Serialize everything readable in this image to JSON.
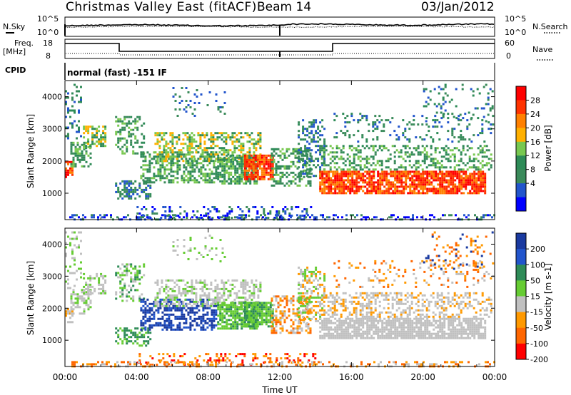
{
  "header": {
    "radar": "Christmas Valley East (fitACF)",
    "beam": "Beam 14",
    "date": "03/Jan/2012"
  },
  "noise_panel": {
    "left_label": "N.Sky",
    "right_label": "N.Search",
    "left_ticks": [
      "10^5",
      "10^0"
    ],
    "right_ticks": [
      "10^5",
      "10^0"
    ]
  },
  "freq_panel": {
    "left_label": "Freq.",
    "left_unit": "[MHz]",
    "right_label": "Nave",
    "left_ticks": [
      "18",
      "8"
    ],
    "right_ticks": [
      "60",
      "0"
    ]
  },
  "cpid": {
    "label": "CPID",
    "value": "normal (fast) -151 IF"
  },
  "chart_data": [
    {
      "type": "heatmap",
      "title": "",
      "quantity": "Power",
      "ylabel": "Slant Range [km]",
      "xlabel": "",
      "x_range": [
        "00:00",
        "24:00"
      ],
      "ylim": [
        180,
        4500
      ],
      "y_ticks": [
        1000,
        2000,
        3000,
        4000
      ],
      "colorbar": {
        "label": "Power [dB]",
        "ticks": [
          "4",
          "8",
          "12",
          "16",
          "20",
          "24",
          "28"
        ],
        "colors": [
          "#0000ff",
          "#2255cc",
          "#3a8a5a",
          "#2e8b57",
          "#78c850",
          "#ffb000",
          "#ff8000",
          "#ff3300",
          "#ff0000"
        ]
      }
    },
    {
      "type": "heatmap",
      "title": "",
      "quantity": "Velocity",
      "ylabel": "Slant Range [km]",
      "xlabel": "Time UT",
      "x_ticks": [
        "00:00",
        "04:00",
        "08:00",
        "12:00",
        "16:00",
        "20:00",
        "00:00"
      ],
      "ylim": [
        180,
        4500
      ],
      "y_ticks": [
        1000,
        2000,
        3000,
        4000
      ],
      "colorbar": {
        "label": "Velocity [m s-1]",
        "ticks": [
          "200",
          "100",
          "50",
          "15",
          "-15",
          "-50",
          "-100",
          "-200"
        ],
        "colors": [
          "#1a3aa0",
          "#2255cc",
          "#2e8b57",
          "#66cc33",
          "#c0c0c0",
          "#ff9900",
          "#ff6600",
          "#ff0000"
        ]
      }
    }
  ]
}
